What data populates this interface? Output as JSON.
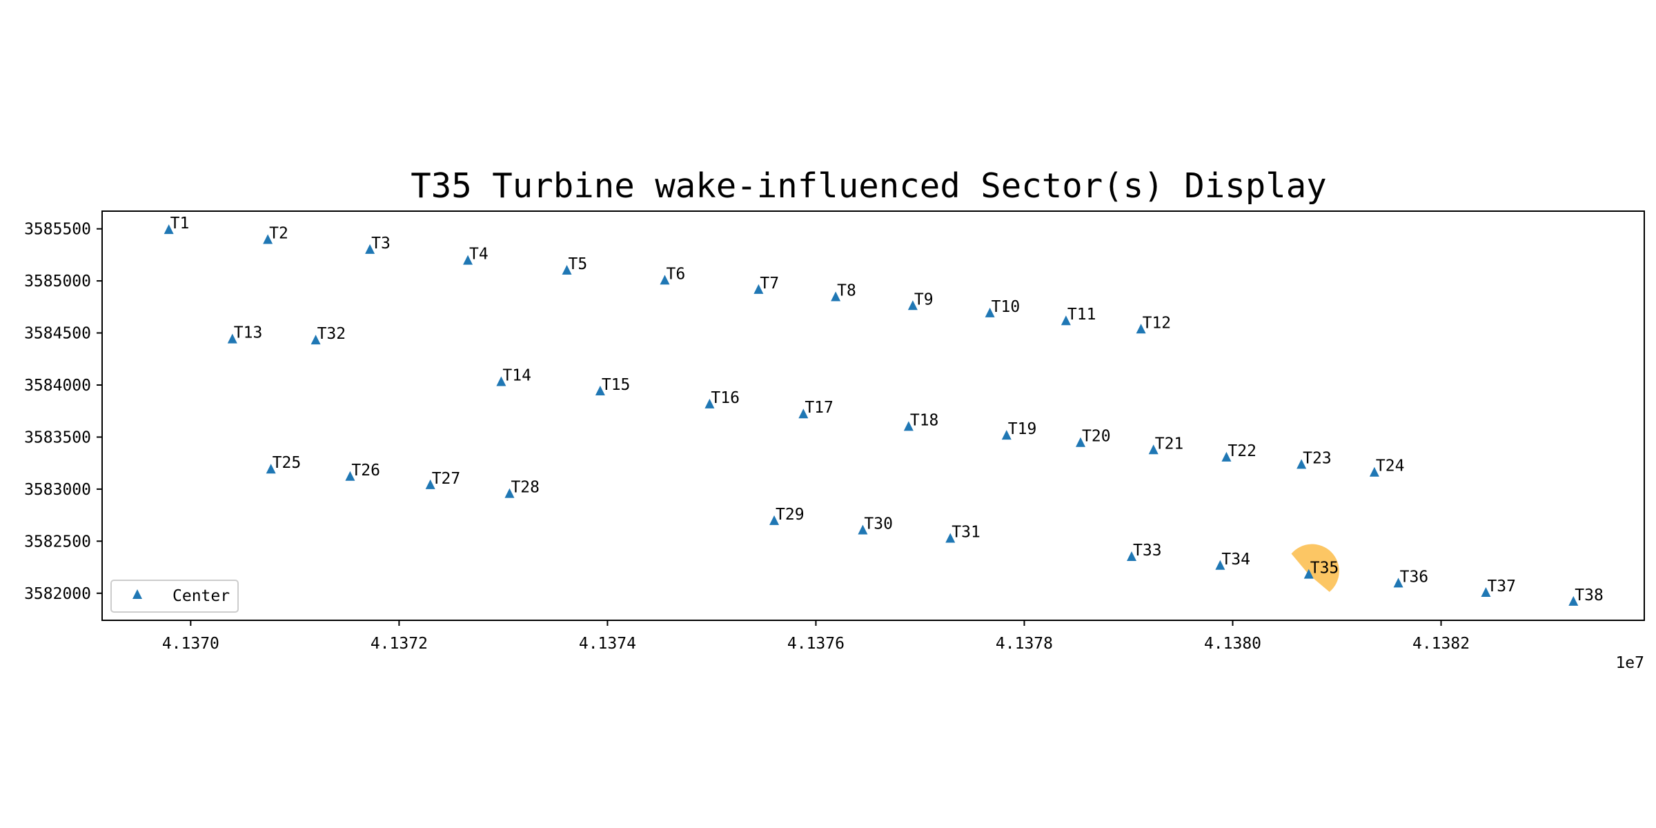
{
  "chart_data": {
    "type": "scatter",
    "title": "T35 Turbine wake-influenced Sector(s) Display",
    "xlabel": "",
    "ylabel": "",
    "x_offset_label": "1e7",
    "xlim": [
      41.36915,
      41.38395
    ],
    "ylim": [
      3581740,
      3585670
    ],
    "x_ticks": [
      41.37,
      41.372,
      41.374,
      41.376,
      41.378,
      41.38,
      41.382
    ],
    "x_tick_labels": [
      "4.1370",
      "4.1372",
      "4.1374",
      "4.1376",
      "4.1378",
      "4.1380",
      "4.1382"
    ],
    "y_ticks": [
      3582000,
      3582500,
      3583000,
      3583500,
      3584000,
      3584500,
      3585000,
      3585500
    ],
    "y_tick_labels": [
      "3582000",
      "3582500",
      "3583000",
      "3583500",
      "3584000",
      "3584500",
      "3585000",
      "3585500"
    ],
    "grid": false,
    "legend": {
      "position": "lower-left",
      "entries": [
        "Center"
      ]
    },
    "series": [
      {
        "name": "Center",
        "marker": "triangle",
        "color": "#1f77b4",
        "points": [
          {
            "label": "T1",
            "x": 41.36979,
            "y": 3585490
          },
          {
            "label": "T2",
            "x": 41.37074,
            "y": 3585395
          },
          {
            "label": "T3",
            "x": 41.37172,
            "y": 3585300
          },
          {
            "label": "T4",
            "x": 41.37266,
            "y": 3585195
          },
          {
            "label": "T5",
            "x": 41.37361,
            "y": 3585100
          },
          {
            "label": "T6",
            "x": 41.37455,
            "y": 3585005
          },
          {
            "label": "T7",
            "x": 41.37545,
            "y": 3584915
          },
          {
            "label": "T8",
            "x": 41.37619,
            "y": 3584845
          },
          {
            "label": "T9",
            "x": 41.37693,
            "y": 3584760
          },
          {
            "label": "T10",
            "x": 41.37767,
            "y": 3584690
          },
          {
            "label": "T11",
            "x": 41.3784,
            "y": 3584615
          },
          {
            "label": "T12",
            "x": 41.37912,
            "y": 3584535
          },
          {
            "label": "T13",
            "x": 41.3704,
            "y": 3584440
          },
          {
            "label": "T32",
            "x": 41.3712,
            "y": 3584430
          },
          {
            "label": "T14",
            "x": 41.37298,
            "y": 3584030
          },
          {
            "label": "T15",
            "x": 41.37393,
            "y": 3583940
          },
          {
            "label": "T16",
            "x": 41.37498,
            "y": 3583815
          },
          {
            "label": "T17",
            "x": 41.37588,
            "y": 3583720
          },
          {
            "label": "T18",
            "x": 41.37689,
            "y": 3583600
          },
          {
            "label": "T19",
            "x": 41.37783,
            "y": 3583515
          },
          {
            "label": "T20",
            "x": 41.37854,
            "y": 3583445
          },
          {
            "label": "T21",
            "x": 41.37924,
            "y": 3583375
          },
          {
            "label": "T22",
            "x": 41.37994,
            "y": 3583305
          },
          {
            "label": "T23",
            "x": 41.38066,
            "y": 3583235
          },
          {
            "label": "T24",
            "x": 41.38136,
            "y": 3583160
          },
          {
            "label": "T25",
            "x": 41.37077,
            "y": 3583190
          },
          {
            "label": "T26",
            "x": 41.37153,
            "y": 3583120
          },
          {
            "label": "T27",
            "x": 41.3723,
            "y": 3583040
          },
          {
            "label": "T28",
            "x": 41.37306,
            "y": 3582955
          },
          {
            "label": "T29",
            "x": 41.3756,
            "y": 3582695
          },
          {
            "label": "T30",
            "x": 41.37645,
            "y": 3582605
          },
          {
            "label": "T31",
            "x": 41.37729,
            "y": 3582525
          },
          {
            "label": "T33",
            "x": 41.37903,
            "y": 3582350
          },
          {
            "label": "T34",
            "x": 41.37988,
            "y": 3582265
          },
          {
            "label": "T35",
            "x": 41.38073,
            "y": 3582180
          },
          {
            "label": "T36",
            "x": 41.38159,
            "y": 3582095
          },
          {
            "label": "T37",
            "x": 41.38243,
            "y": 3582005
          },
          {
            "label": "T38",
            "x": 41.38327,
            "y": 3581920
          }
        ]
      }
    ],
    "wake_sector": {
      "center": "T35",
      "color": "#fbbc49",
      "radius_y_units": 260,
      "direction_from_deg": 0,
      "direction_to_deg": 180
    }
  }
}
